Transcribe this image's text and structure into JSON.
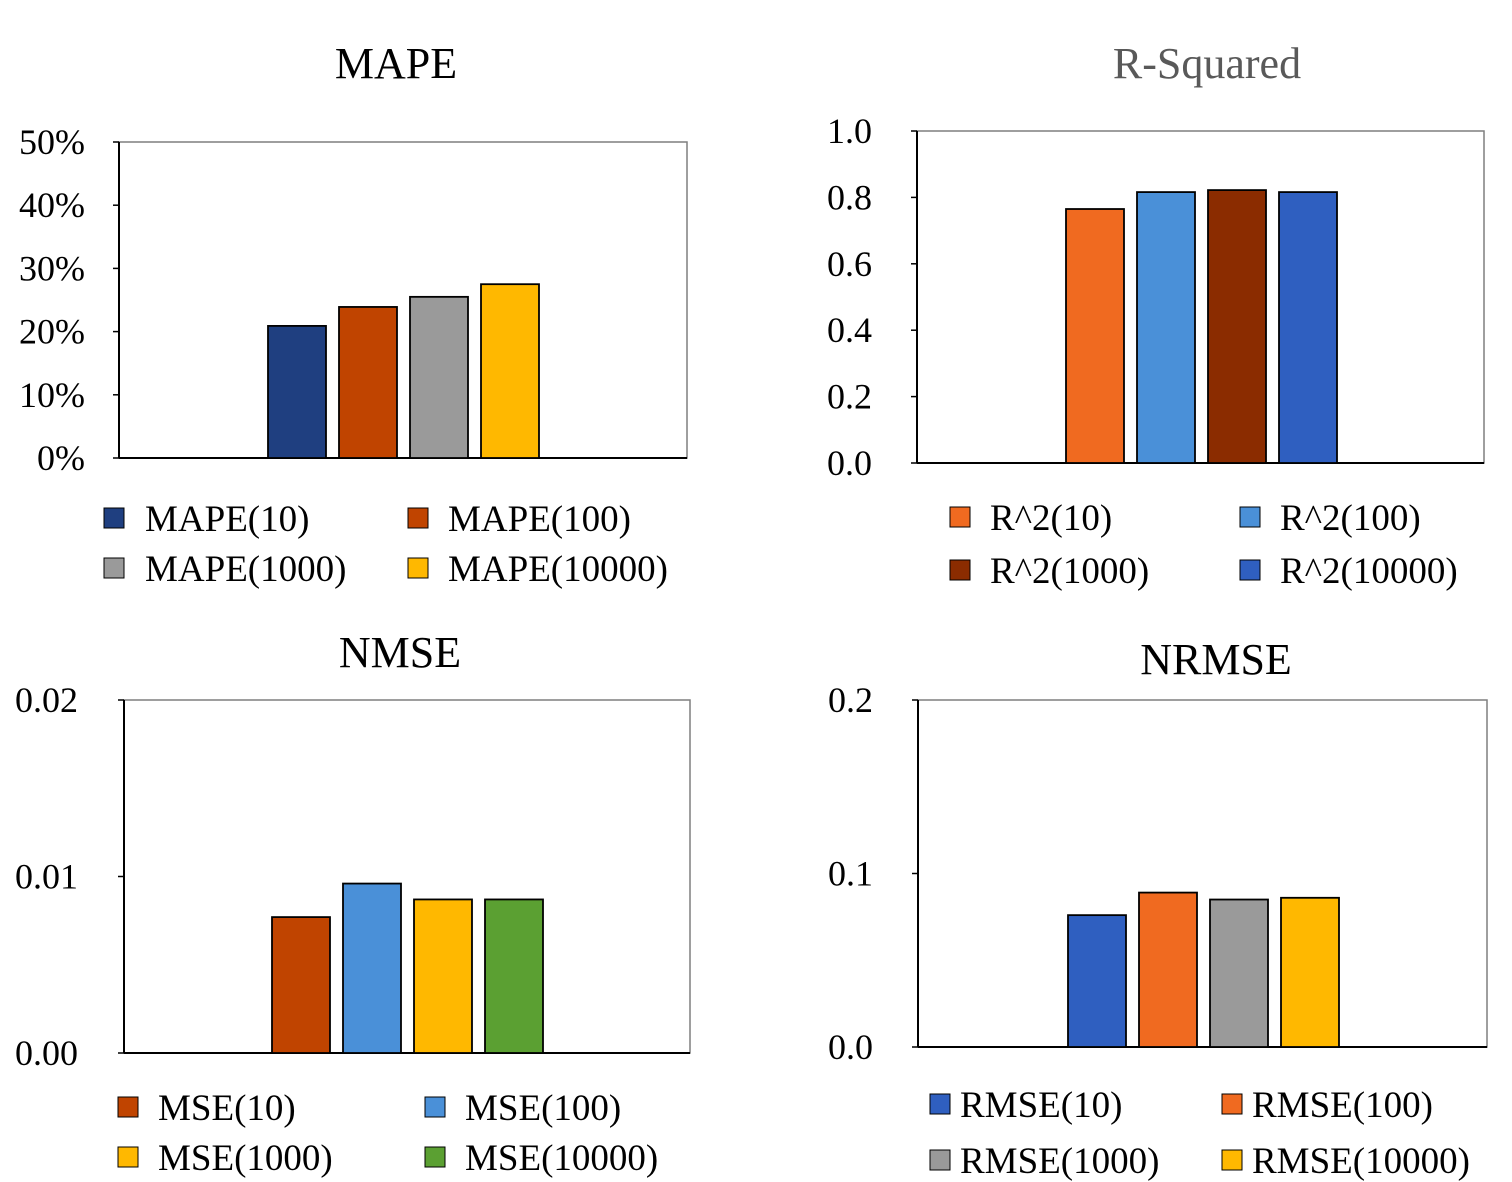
{
  "chart_data": [
    {
      "type": "bar",
      "title": "MAPE",
      "title_color": "#000000",
      "ylim": [
        0,
        0.5
      ],
      "yticks": [
        "0%",
        "10%",
        "20%",
        "30%",
        "40%",
        "50%"
      ],
      "series": [
        {
          "name": "MAPE(10)",
          "values": [
            0.209
          ],
          "color": "#1F3F80"
        },
        {
          "name": "MAPE(100)",
          "values": [
            0.239
          ],
          "color": "#C04400"
        },
        {
          "name": "MAPE(1000)",
          "values": [
            0.255
          ],
          "color": "#9A9A9A"
        },
        {
          "name": "MAPE(10000)",
          "values": [
            0.275
          ],
          "color": "#FFB800"
        }
      ],
      "grid": false,
      "legend": "bottom"
    },
    {
      "type": "bar",
      "title": "R-Squared",
      "title_color": "#595959",
      "ylim": [
        0,
        1.0
      ],
      "yticks": [
        "0.0",
        "0.2",
        "0.4",
        "0.6",
        "0.8",
        "1.0"
      ],
      "series": [
        {
          "name": "R^2(10)",
          "values": [
            0.765
          ],
          "color": "#F06A20"
        },
        {
          "name": "R^2(100)",
          "values": [
            0.816
          ],
          "color": "#4A90D8"
        },
        {
          "name": "R^2(1000)",
          "values": [
            0.822
          ],
          "color": "#8B2C00"
        },
        {
          "name": "R^2(10000)",
          "values": [
            0.816
          ],
          "color": "#2F5FC0"
        }
      ],
      "grid": false,
      "legend": "bottom"
    },
    {
      "type": "bar",
      "title": "NMSE",
      "title_color": "#000000",
      "ylim": [
        0,
        0.02
      ],
      "yticks": [
        "0.00",
        "0.01",
        "0.02"
      ],
      "series": [
        {
          "name": "MSE(10)",
          "values": [
            0.0077
          ],
          "color": "#C04400"
        },
        {
          "name": "MSE(100)",
          "values": [
            0.0096
          ],
          "color": "#4A90D8"
        },
        {
          "name": "MSE(1000)",
          "values": [
            0.0087
          ],
          "color": "#FFB800"
        },
        {
          "name": "MSE(10000)",
          "values": [
            0.0087
          ],
          "color": "#5BA032"
        }
      ],
      "grid": false,
      "legend": "bottom"
    },
    {
      "type": "bar",
      "title": "NRMSE",
      "title_color": "#000000",
      "ylim": [
        0,
        0.2
      ],
      "yticks": [
        "0.0",
        "0.1",
        "0.2"
      ],
      "series": [
        {
          "name": "RMSE(10)",
          "values": [
            0.076
          ],
          "color": "#2F5FC0"
        },
        {
          "name": "RMSE(100)",
          "values": [
            0.089
          ],
          "color": "#F06A20"
        },
        {
          "name": "RMSE(1000)",
          "values": [
            0.085
          ],
          "color": "#9A9A9A"
        },
        {
          "name": "RMSE(10000)",
          "values": [
            0.086
          ],
          "color": "#FFB800"
        }
      ],
      "grid": false,
      "legend": "bottom"
    }
  ]
}
